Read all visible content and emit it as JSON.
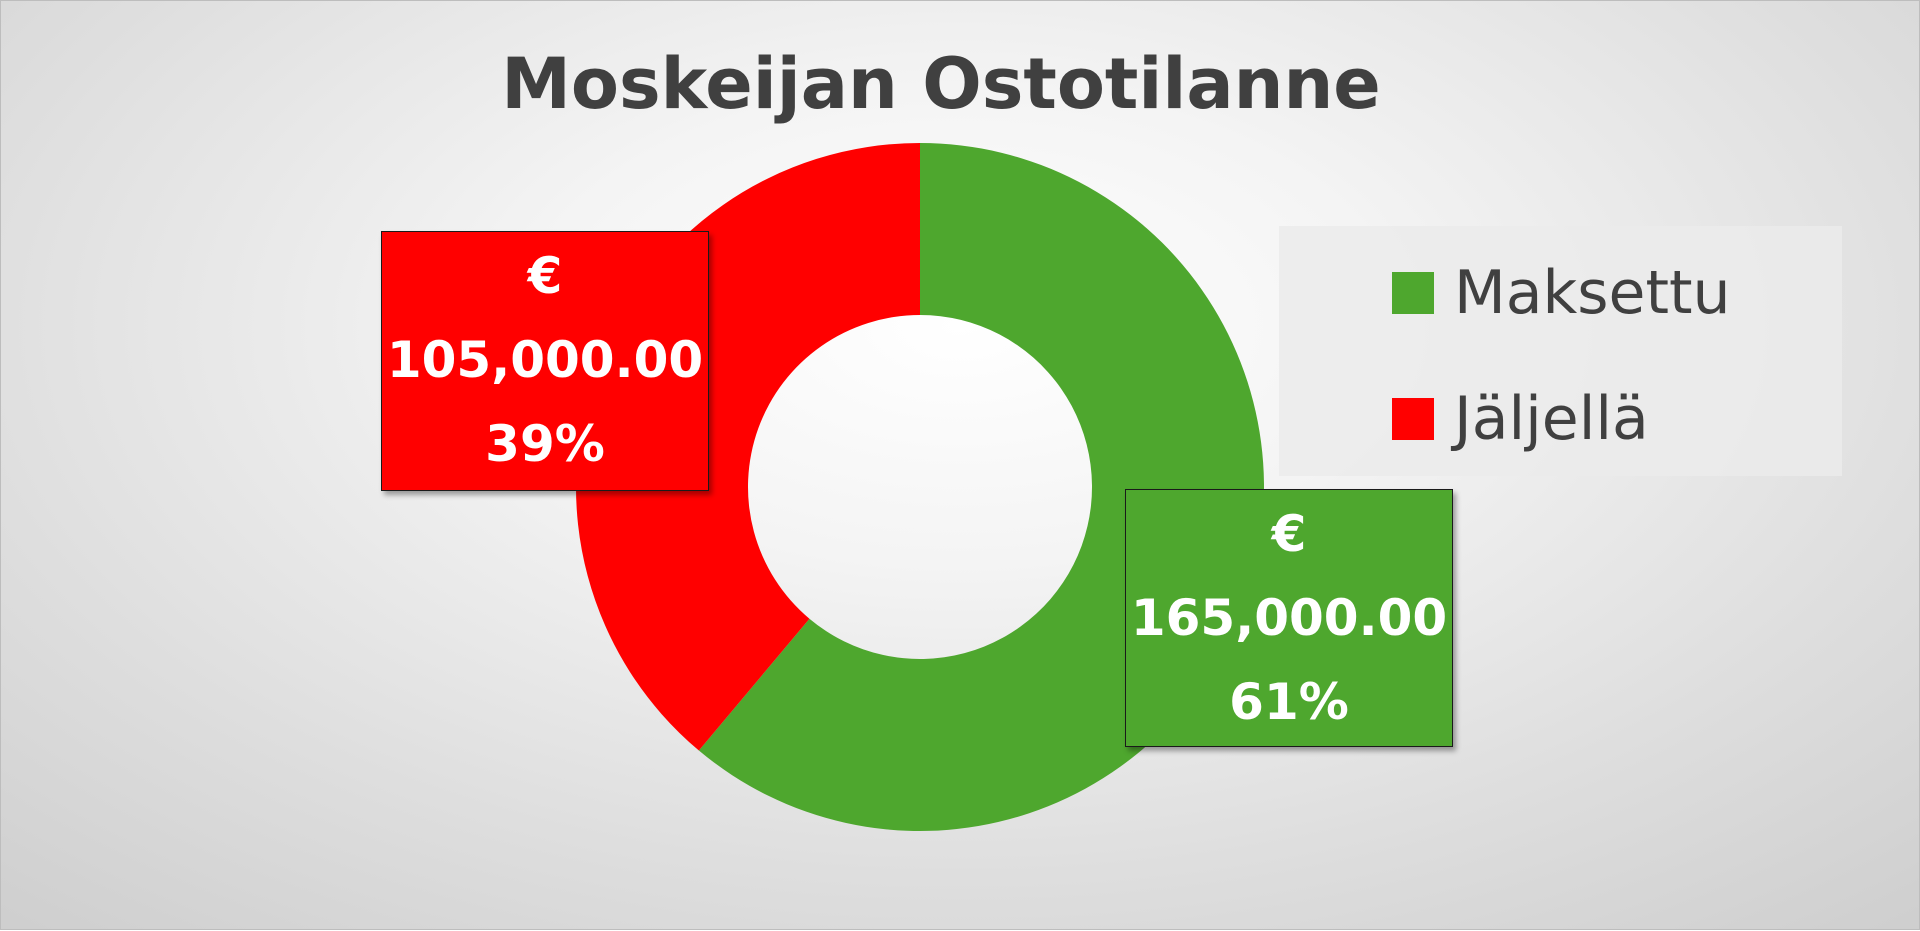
{
  "chart_data": {
    "type": "pie",
    "variant": "donut",
    "title": "Moskeijan Ostotilanne",
    "series": [
      {
        "name": "Maksettu",
        "value": 165000.0,
        "percent": 61,
        "color": "#4EA72E",
        "label_currency": "€",
        "label_value": "165,000.00",
        "label_percent": "61%"
      },
      {
        "name": "Jäljellä",
        "value": 105000.0,
        "percent": 39,
        "color": "#FF0000",
        "label_currency": "€",
        "label_value": "105,000.00",
        "label_percent": "39%"
      }
    ],
    "legend_position": "right"
  }
}
